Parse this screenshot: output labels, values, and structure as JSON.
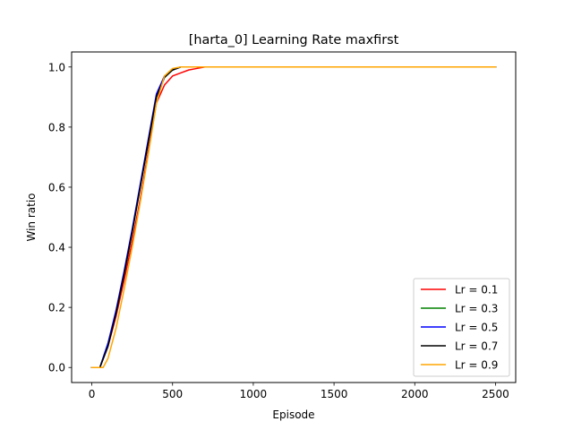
{
  "chart_data": {
    "type": "line",
    "title": "[harta_0] Learning Rate  maxfirst",
    "xlabel": "Episode",
    "ylabel": "Win ratio",
    "xlim": [
      -125,
      2625
    ],
    "ylim": [
      -0.05,
      1.05
    ],
    "xticks": [
      0,
      500,
      1000,
      1500,
      2000,
      2500
    ],
    "yticks": [
      0.0,
      0.2,
      0.4,
      0.6,
      0.8,
      1.0
    ],
    "xtick_labels": [
      "0",
      "500",
      "1000",
      "1500",
      "2000",
      "2500"
    ],
    "ytick_labels": [
      "0.0",
      "0.2",
      "0.4",
      "0.6",
      "0.8",
      "1.0"
    ],
    "grid": false,
    "legend_position": "lower-right",
    "series": [
      {
        "name": "Lr = 0.1",
        "color": "#ff0000",
        "points": [
          [
            0,
            0
          ],
          [
            50,
            0
          ],
          [
            100,
            0.07
          ],
          [
            150,
            0.17
          ],
          [
            200,
            0.29
          ],
          [
            250,
            0.42
          ],
          [
            300,
            0.56
          ],
          [
            350,
            0.72
          ],
          [
            400,
            0.88
          ],
          [
            450,
            0.94
          ],
          [
            500,
            0.97
          ],
          [
            550,
            0.98
          ],
          [
            600,
            0.99
          ],
          [
            650,
            0.995
          ],
          [
            700,
            1.0
          ],
          [
            2500,
            1.0
          ]
        ]
      },
      {
        "name": "Lr = 0.3",
        "color": "#008000",
        "points": [
          [
            0,
            0
          ],
          [
            50,
            0
          ],
          [
            100,
            0.08
          ],
          [
            150,
            0.18
          ],
          [
            200,
            0.31
          ],
          [
            250,
            0.45
          ],
          [
            300,
            0.6
          ],
          [
            350,
            0.75
          ],
          [
            400,
            0.9
          ],
          [
            450,
            0.965
          ],
          [
            500,
            0.99
          ],
          [
            550,
            1.0
          ],
          [
            2500,
            1.0
          ]
        ]
      },
      {
        "name": "Lr = 0.5",
        "color": "#0000ff",
        "points": [
          [
            0,
            0
          ],
          [
            50,
            0
          ],
          [
            100,
            0.08
          ],
          [
            150,
            0.19
          ],
          [
            200,
            0.32
          ],
          [
            250,
            0.46
          ],
          [
            300,
            0.61
          ],
          [
            350,
            0.76
          ],
          [
            400,
            0.91
          ],
          [
            450,
            0.97
          ],
          [
            500,
            0.99
          ],
          [
            550,
            1.0
          ],
          [
            2500,
            1.0
          ]
        ]
      },
      {
        "name": "Lr = 0.7",
        "color": "#000000",
        "points": [
          [
            0,
            0
          ],
          [
            50,
            0
          ],
          [
            100,
            0.07
          ],
          [
            150,
            0.18
          ],
          [
            200,
            0.31
          ],
          [
            250,
            0.45
          ],
          [
            300,
            0.6
          ],
          [
            350,
            0.75
          ],
          [
            400,
            0.9
          ],
          [
            450,
            0.965
          ],
          [
            500,
            0.99
          ],
          [
            550,
            1.0
          ],
          [
            2500,
            1.0
          ]
        ]
      },
      {
        "name": "Lr = 0.9",
        "color": "#ffa500",
        "points": [
          [
            0,
            0
          ],
          [
            70,
            0
          ],
          [
            100,
            0.03
          ],
          [
            150,
            0.13
          ],
          [
            200,
            0.26
          ],
          [
            250,
            0.4
          ],
          [
            300,
            0.55
          ],
          [
            350,
            0.71
          ],
          [
            400,
            0.88
          ],
          [
            450,
            0.97
          ],
          [
            500,
            0.995
          ],
          [
            550,
            1.0
          ],
          [
            2500,
            1.0
          ]
        ]
      }
    ]
  }
}
